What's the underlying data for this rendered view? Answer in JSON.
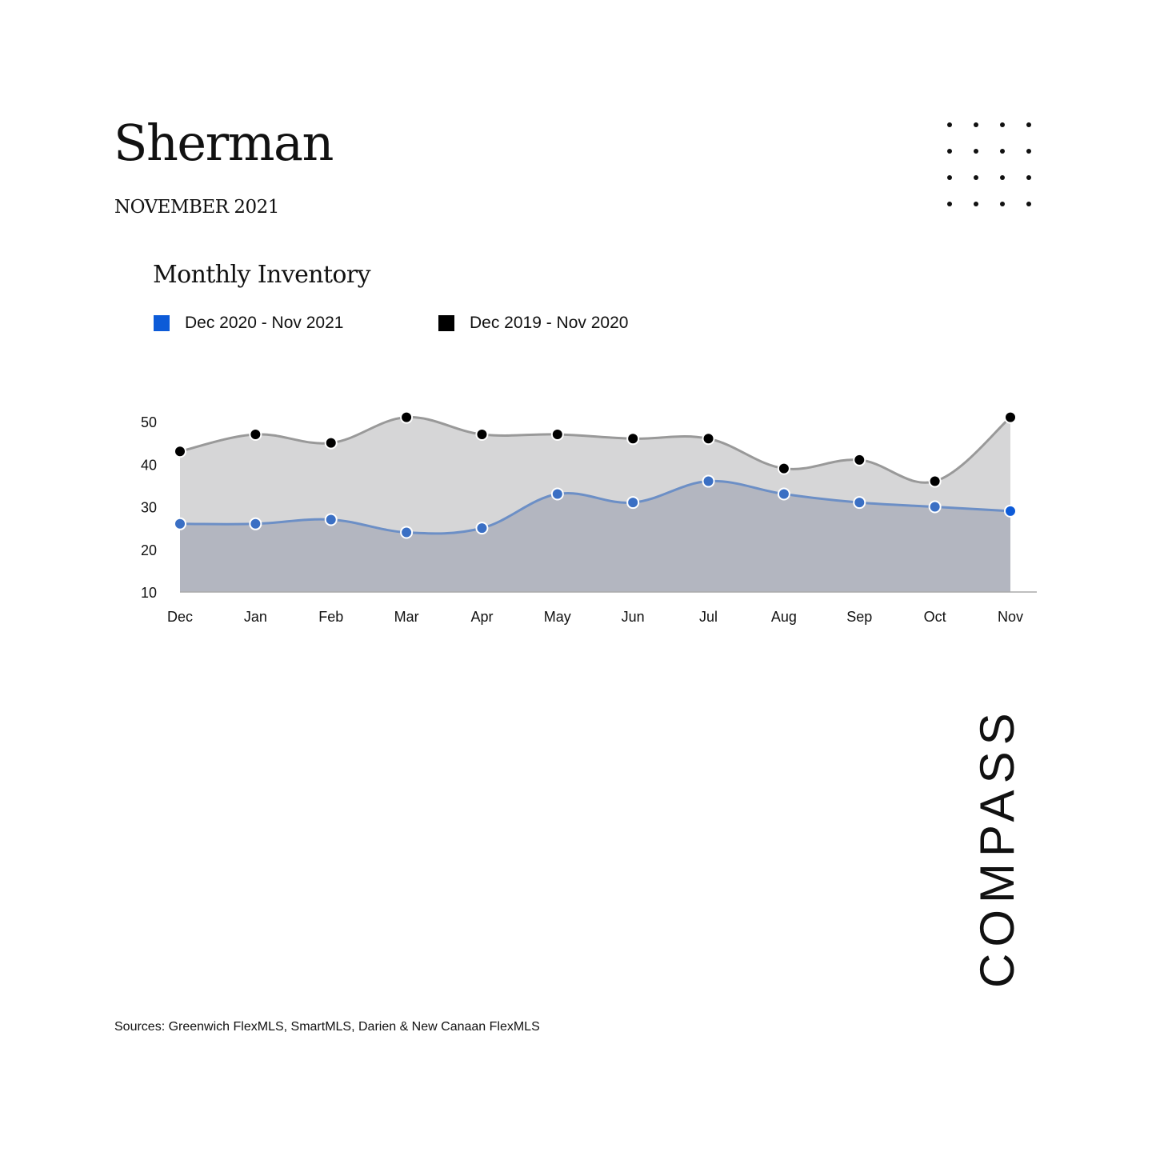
{
  "header": {
    "title": "Sherman",
    "subtitle": "NOVEMBER 2021"
  },
  "footer": {
    "sources": "Sources: Greenwich FlexMLS, SmartMLS, Darien & New Canaan FlexMLS",
    "logo": "COMPASS"
  },
  "chart_data": {
    "type": "area",
    "title": "Monthly Inventory",
    "xlabel": "",
    "ylabel": "",
    "categories": [
      "Dec",
      "Jan",
      "Feb",
      "Mar",
      "Apr",
      "May",
      "Jun",
      "Jul",
      "Aug",
      "Sep",
      "Oct",
      "Nov"
    ],
    "yticks": [
      10,
      20,
      30,
      40,
      50
    ],
    "ylim": [
      10,
      50
    ],
    "grid": false,
    "legend": "top-left",
    "series": [
      {
        "name": "Dec 2020 - Nov 2021",
        "values": [
          26,
          26,
          27,
          24,
          25,
          33,
          31,
          36,
          33,
          31,
          30,
          29
        ],
        "line_color": "#6c8fc6",
        "marker_color": "#3a6fc4",
        "fill_color": "#b3b6c0",
        "legend_color": "#0d5bd8"
      },
      {
        "name": "Dec 2019 - Nov 2020",
        "values": [
          43,
          47,
          45,
          51,
          47,
          47,
          46,
          46,
          39,
          41,
          36,
          51
        ],
        "line_color": "#999999",
        "marker_color": "#000000",
        "fill_color": "#d6d6d7",
        "legend_color": "#000000"
      }
    ]
  }
}
